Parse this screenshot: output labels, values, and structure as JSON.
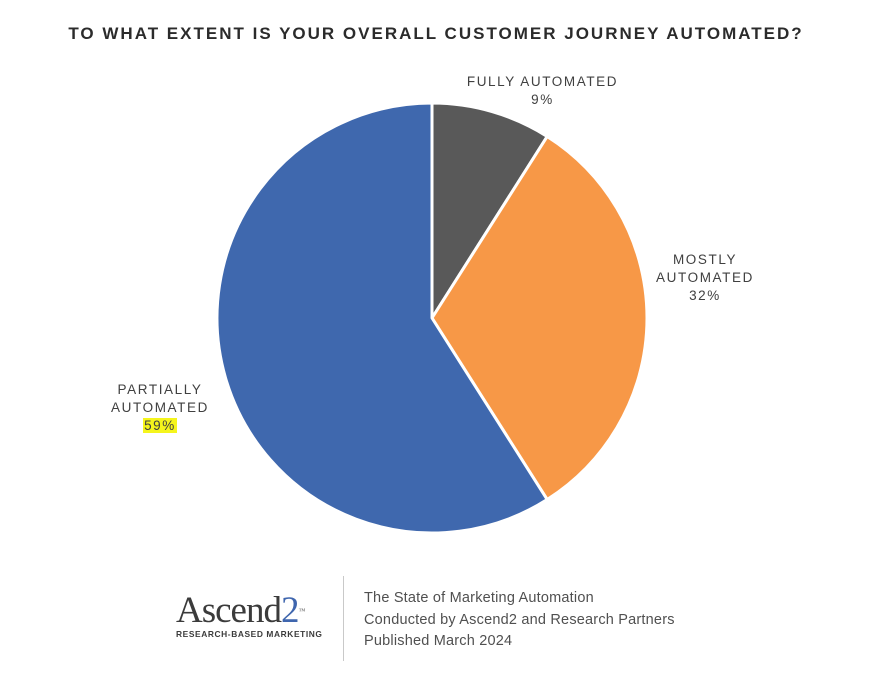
{
  "chart_data": {
    "type": "pie",
    "title": "TO WHAT EXTENT IS YOUR OVERALL CUSTOMER JOURNEY AUTOMATED?",
    "slices": [
      {
        "label_lines": [
          "FULLY AUTOMATED"
        ],
        "value": 9,
        "value_text": "9%",
        "color": "#595959"
      },
      {
        "label_lines": [
          "MOSTLY",
          "AUTOMATED"
        ],
        "value": 32,
        "value_text": "32%",
        "color": "#f79847"
      },
      {
        "label_lines": [
          "PARTIALLY",
          "AUTOMATED"
        ],
        "value": 59,
        "value_text": "59%",
        "color": "#3f68ae",
        "highlighted": true
      }
    ],
    "start_angle": "12 o'clock",
    "direction": "clockwise",
    "legend": "none",
    "grid": false
  },
  "footer": {
    "logo": {
      "word": "Ascend",
      "digit": "2",
      "tm": "™",
      "tagline": "RESEARCH-BASED MARKETING"
    },
    "credits": [
      "The State of Marketing Automation",
      "Conducted by Ascend2 and Research Partners",
      "Published March 2024"
    ]
  },
  "colors": {
    "highlight": "#f5f51c",
    "brand_blue": "#3f66ae"
  }
}
